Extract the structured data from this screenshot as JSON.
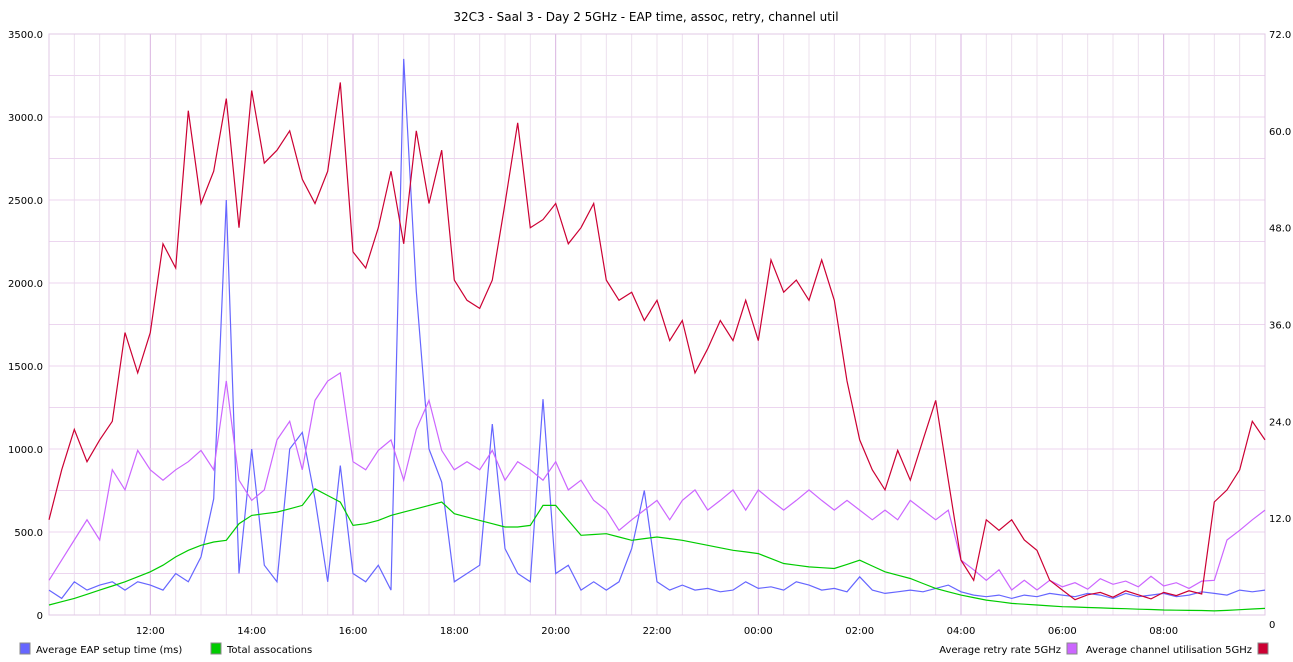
{
  "chart_data": {
    "type": "line",
    "title": "32C3 - Saal 3 - Day 2 5GHz - EAP time, assoc, retry, channel util",
    "x_start": "10:00",
    "x_step_minutes": 15,
    "x_ticks": [
      "12:00",
      "14:00",
      "16:00",
      "18:00",
      "20:00",
      "22:00",
      "00:00",
      "02:00",
      "04:00",
      "06:00",
      "08:00"
    ],
    "x_tick_hours_from_start": [
      2,
      4,
      6,
      8,
      10,
      12,
      14,
      16,
      18,
      20,
      22
    ],
    "x_range_hours": [
      0,
      24
    ],
    "left_axis": {
      "ylim": [
        0,
        3500
      ],
      "ticks": [
        "0",
        "500.0",
        "1000.0",
        "1500.0",
        "2000.0",
        "2500.0",
        "3000.0",
        "3500.0"
      ],
      "tick_values": [
        0,
        500,
        1000,
        1500,
        2000,
        2500,
        3000,
        3500
      ]
    },
    "right_axis": {
      "ylim": [
        0,
        72
      ],
      "ticks": [
        "0",
        "12.0",
        "24.0",
        "36.0",
        "48.0",
        "60.0",
        "72.0"
      ],
      "tick_values": [
        0,
        12,
        24,
        36,
        48,
        60,
        72
      ]
    },
    "grid": true,
    "legend_placement": "bottom",
    "series": [
      {
        "name": "Average EAP setup time (ms)",
        "axis": "left",
        "color": "#6666ff",
        "values": [
          150,
          100,
          200,
          150,
          180,
          200,
          150,
          200,
          180,
          150,
          250,
          200,
          350,
          700,
          2500,
          250,
          1000,
          300,
          200,
          1000,
          1100,
          700,
          200,
          900,
          250,
          200,
          300,
          150,
          3350,
          1950,
          1000,
          800,
          200,
          250,
          300,
          1150,
          400,
          250,
          200,
          1300,
          250,
          300,
          150,
          200,
          150,
          200,
          400,
          750,
          200,
          150,
          180,
          150,
          160,
          140,
          150,
          200,
          160,
          170,
          150,
          200,
          180,
          150,
          160,
          140,
          230,
          150,
          130,
          140,
          150,
          140,
          160,
          180,
          140,
          120,
          110,
          120,
          100,
          120,
          110,
          130,
          120,
          110,
          130,
          120,
          100,
          130,
          110,
          120,
          130,
          110,
          120,
          140,
          130,
          120,
          150,
          140,
          150
        ]
      },
      {
        "name": "Total assocations",
        "axis": "left",
        "color": "#00cc00",
        "values": [
          60,
          80,
          100,
          125,
          150,
          175,
          200,
          230,
          260,
          300,
          350,
          390,
          420,
          440,
          450,
          550,
          600,
          610,
          620,
          640,
          660,
          760,
          720,
          680,
          540,
          550,
          570,
          600,
          620,
          640,
          660,
          680,
          610,
          590,
          570,
          550,
          530,
          530,
          540,
          660,
          660,
          570,
          480,
          485,
          490,
          470,
          450,
          460,
          470,
          460,
          450,
          435,
          420,
          405,
          390,
          380,
          370,
          340,
          310,
          300,
          290,
          285,
          280,
          305,
          330,
          295,
          260,
          240,
          220,
          190,
          160,
          140,
          120,
          105,
          90,
          80,
          70,
          65,
          60,
          55,
          50,
          48,
          45,
          43,
          40,
          38,
          35,
          33,
          30,
          29,
          28,
          27,
          25,
          28,
          32,
          36,
          40
        ]
      },
      {
        "name": "Average retry rate 5GHz",
        "axis": "right",
        "color": "#cc66ff",
        "values": [
          4.3,
          6.8,
          9.3,
          11.8,
          9.3,
          18,
          15.5,
          20.4,
          18,
          16.7,
          18,
          19,
          20.4,
          18,
          29,
          16.7,
          14.2,
          15.5,
          21.7,
          24,
          18,
          26.6,
          29,
          30,
          19,
          18,
          20.4,
          21.7,
          16.7,
          23,
          26.6,
          20.4,
          18,
          19,
          18,
          20.4,
          16.7,
          19,
          18,
          16.7,
          19,
          15.5,
          16.7,
          14.2,
          13,
          10.5,
          11.8,
          13,
          14.2,
          11.8,
          14.2,
          15.5,
          13,
          14.2,
          15.5,
          13,
          15.5,
          14.2,
          13,
          14.2,
          15.5,
          14.2,
          13,
          14.2,
          13,
          11.8,
          13,
          11.8,
          14.2,
          13,
          11.8,
          13,
          6.8,
          5.6,
          4.3,
          5.6,
          3.1,
          4.3,
          3.1,
          4.3,
          3.5,
          4,
          3.2,
          4.5,
          3.8,
          4.2,
          3.5,
          4.8,
          3.6,
          4,
          3.3,
          4.2,
          4.3,
          9.3,
          10.5,
          11.8,
          13
        ]
      },
      {
        "name": "Average channel utilisation 5GHz",
        "axis": "right",
        "color": "#cc0033",
        "values": [
          11.8,
          18,
          23,
          19,
          21.7,
          24,
          35,
          30,
          35,
          46,
          43,
          62.5,
          51,
          55,
          64,
          48,
          65,
          56,
          57.6,
          60,
          54,
          51,
          55,
          66,
          45,
          43,
          48,
          55,
          46,
          60,
          51,
          57.6,
          41.5,
          39,
          38,
          41.5,
          51,
          61,
          48,
          49,
          51,
          46,
          48,
          51,
          41.5,
          39,
          40,
          36.5,
          39,
          34,
          36.5,
          30,
          33,
          36.5,
          34,
          39,
          34,
          44,
          40,
          41.5,
          39,
          44,
          39,
          29,
          21.7,
          18,
          15.5,
          20.4,
          16.7,
          21.7,
          26.6,
          16.7,
          6.8,
          4.3,
          11.8,
          10.5,
          11.8,
          9.3,
          8,
          4.3,
          3.1,
          1.9,
          2.5,
          2.8,
          2.2,
          3,
          2.5,
          2,
          2.8,
          2.4,
          3,
          2.6,
          14,
          15.5,
          18,
          24,
          21.7
        ]
      }
    ]
  }
}
